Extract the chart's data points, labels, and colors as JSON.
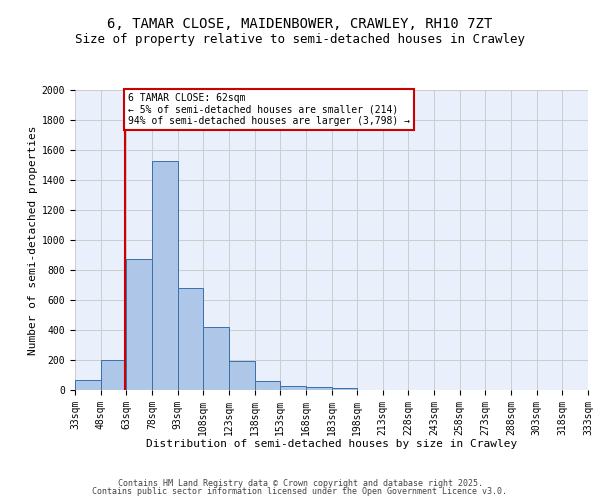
{
  "title_line1": "6, TAMAR CLOSE, MAIDENBOWER, CRAWLEY, RH10 7ZT",
  "title_line2": "Size of property relative to semi-detached houses in Crawley",
  "xlabel": "Distribution of semi-detached houses by size in Crawley",
  "ylabel": "Number of semi-detached properties",
  "annotation_title": "6 TAMAR CLOSE: 62sqm",
  "annotation_line1": "← 5% of semi-detached houses are smaller (214)",
  "annotation_line2": "94% of semi-detached houses are larger (3,798) →",
  "bar_edges": [
    33,
    48,
    63,
    78,
    93,
    108,
    123,
    138,
    153,
    168,
    183,
    198,
    213,
    228,
    243,
    258,
    273,
    288,
    303,
    318,
    333
  ],
  "bar_heights": [
    65,
    200,
    875,
    1530,
    680,
    420,
    195,
    60,
    25,
    20,
    15,
    0,
    0,
    0,
    0,
    0,
    0,
    0,
    0,
    0
  ],
  "bar_color": "#aec6e8",
  "bar_edge_color": "#3a6fa8",
  "vline_color": "#cc0000",
  "vline_x": 62,
  "ylim": [
    0,
    2000
  ],
  "yticks": [
    0,
    200,
    400,
    600,
    800,
    1000,
    1200,
    1400,
    1600,
    1800,
    2000
  ],
  "grid_color": "#cccccc",
  "bg_color": "#eaf0fb",
  "annotation_box_color": "#cc0000",
  "footer_line1": "Contains HM Land Registry data © Crown copyright and database right 2025.",
  "footer_line2": "Contains public sector information licensed under the Open Government Licence v3.0.",
  "title_fontsize": 10,
  "subtitle_fontsize": 9,
  "ylabel_fontsize": 8,
  "xlabel_fontsize": 8,
  "tick_fontsize": 7,
  "footer_fontsize": 6,
  "annot_fontsize": 7
}
